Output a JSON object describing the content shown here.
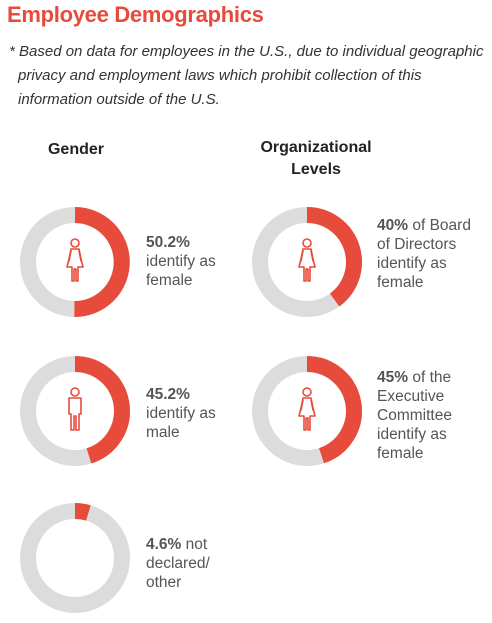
{
  "title": "Employee Demographics",
  "note": "* Based on data for employees in the U.S., due to individual geographic privacy and employment laws which prohibit collection of this information outside of the U.S.",
  "colors": {
    "accent": "#e64b3b",
    "track": "#dcdcdc",
    "icon": "#e64b3b"
  },
  "columns": {
    "gender": "Gender",
    "org_line1": "Organizational",
    "org_line2": "Levels"
  },
  "chart_data": [
    {
      "type": "pie",
      "variant": "donut",
      "group": "Gender",
      "values": [
        50.2
      ],
      "unit": "%",
      "icon": "female-icon",
      "label_value": "50.2%",
      "label_text": "identify as female"
    },
    {
      "type": "pie",
      "variant": "donut",
      "group": "Gender",
      "values": [
        45.2
      ],
      "unit": "%",
      "icon": "male-icon",
      "label_value": "45.2%",
      "label_text": "identify as male"
    },
    {
      "type": "pie",
      "variant": "donut",
      "group": "Gender",
      "values": [
        4.6
      ],
      "unit": "%",
      "icon": "",
      "label_value": "4.6%",
      "label_text": "not declared/ other"
    },
    {
      "type": "pie",
      "variant": "donut",
      "group": "Organizational Levels",
      "values": [
        40
      ],
      "unit": "%",
      "icon": "female-icon",
      "label_value": "40%",
      "label_text": "of Board of Directors identify as female"
    },
    {
      "type": "pie",
      "variant": "donut",
      "group": "Organizational Levels",
      "values": [
        45
      ],
      "unit": "%",
      "icon": "female-icon",
      "label_value": "45%",
      "label_text": "of the Executive Committee identify as female"
    }
  ]
}
